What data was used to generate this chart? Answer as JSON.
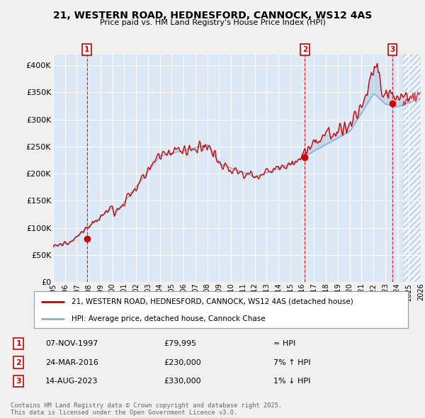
{
  "title": "21, WESTERN ROAD, HEDNESFORD, CANNOCK, WS12 4AS",
  "subtitle": "Price paid vs. HM Land Registry's House Price Index (HPI)",
  "ylim": [
    0,
    420000
  ],
  "yticks": [
    0,
    50000,
    100000,
    150000,
    200000,
    250000,
    300000,
    350000,
    400000
  ],
  "ytick_labels": [
    "£0",
    "£50K",
    "£100K",
    "£150K",
    "£200K",
    "£250K",
    "£300K",
    "£350K",
    "£400K"
  ],
  "background_color": "#f0f0f0",
  "plot_bg_color": "#dce8f5",
  "grid_color": "#ffffff",
  "sale_color": "#cc0000",
  "hpi_color": "#88afd0",
  "hatch_color": "#c8d8e8",
  "legend_label_sale": "21, WESTERN ROAD, HEDNESFORD, CANNOCK, WS12 4AS (detached house)",
  "legend_label_hpi": "HPI: Average price, detached house, Cannock Chase",
  "transactions": [
    {
      "num": 1,
      "date": "07-NOV-1997",
      "price": 79995,
      "relation": "≈ HPI",
      "year": 1997.85
    },
    {
      "num": 2,
      "date": "24-MAR-2016",
      "price": 230000,
      "relation": "7% ↑ HPI",
      "year": 2016.23
    },
    {
      "num": 3,
      "date": "14-AUG-2023",
      "price": 330000,
      "relation": "1% ↓ HPI",
      "year": 2023.62
    }
  ],
  "footer": "Contains HM Land Registry data © Crown copyright and database right 2025.\nThis data is licensed under the Open Government Licence v3.0.",
  "xlim": [
    1995,
    2026
  ],
  "hatch_start": 2024.5,
  "xtick_years": [
    1995,
    1996,
    1997,
    1998,
    1999,
    2000,
    2001,
    2002,
    2003,
    2004,
    2005,
    2006,
    2007,
    2008,
    2009,
    2010,
    2011,
    2012,
    2013,
    2014,
    2015,
    2016,
    2017,
    2018,
    2019,
    2020,
    2021,
    2022,
    2023,
    2024,
    2025,
    2026
  ]
}
